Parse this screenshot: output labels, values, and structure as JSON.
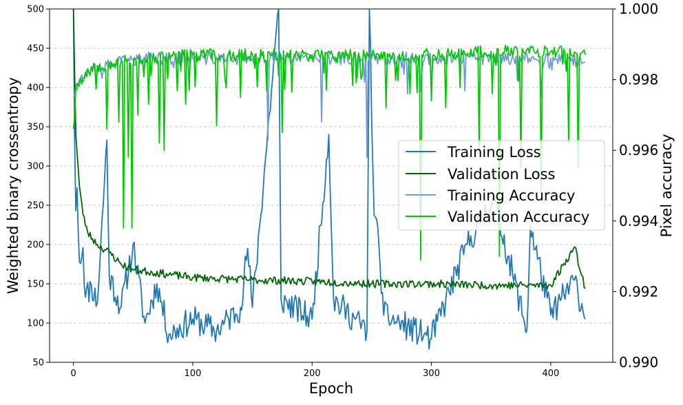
{
  "chart_data": {
    "type": "line",
    "xlabel": "Epoch",
    "ylabel": "Weighted binary crossentropy",
    "y2label": "Pixel accuracy",
    "xlim": [
      -20,
      452
    ],
    "ylim": [
      50,
      500
    ],
    "y2lim": [
      0.99,
      1.0
    ],
    "xticks": [
      "0",
      "100",
      "200",
      "300",
      "400"
    ],
    "yticks": [
      "50",
      "100",
      "150",
      "200",
      "250",
      "300",
      "350",
      "400",
      "450",
      "500"
    ],
    "y2ticks": [
      "0.990",
      "0.992",
      "0.994",
      "0.996",
      "0.998",
      "1.000"
    ],
    "grid": "horizontal dashed",
    "legend_position": "center-right",
    "epochs": 430,
    "series": [
      {
        "name": "Training Loss",
        "axis": "left",
        "color": "#1f77b4",
        "keypoints": [
          [
            0,
            500
          ],
          [
            1,
            330
          ],
          [
            2,
            243
          ],
          [
            3,
            272
          ],
          [
            5,
            178
          ],
          [
            8,
            196
          ],
          [
            10,
            133
          ],
          [
            15,
            148
          ],
          [
            20,
            125
          ],
          [
            28,
            333
          ],
          [
            30,
            160
          ],
          [
            40,
            120
          ],
          [
            50,
            200
          ],
          [
            60,
            100
          ],
          [
            70,
            150
          ],
          [
            80,
            85
          ],
          [
            100,
            105
          ],
          [
            120,
            90
          ],
          [
            140,
            120
          ],
          [
            146,
            195
          ],
          [
            150,
            120
          ],
          [
            172,
            500
          ],
          [
            174,
            130
          ],
          [
            200,
            105
          ],
          [
            214,
            340
          ],
          [
            218,
            130
          ],
          [
            246,
            90
          ],
          [
            248,
            500
          ],
          [
            252,
            237
          ],
          [
            256,
            200
          ],
          [
            260,
            110
          ],
          [
            300,
            80
          ],
          [
            330,
            200
          ],
          [
            352,
            260
          ],
          [
            380,
            90
          ],
          [
            383,
            223
          ],
          [
            400,
            110
          ],
          [
            420,
            155
          ],
          [
            429,
            105
          ]
        ]
      },
      {
        "name": "Validation Loss",
        "axis": "left",
        "color": "#006400",
        "keypoints": [
          [
            0,
            500
          ],
          [
            2,
            340
          ],
          [
            5,
            275
          ],
          [
            8,
            238
          ],
          [
            12,
            215
          ],
          [
            20,
            200
          ],
          [
            30,
            190
          ],
          [
            40,
            175
          ],
          [
            50,
            168
          ],
          [
            80,
            162
          ],
          [
            100,
            158
          ],
          [
            150,
            155
          ],
          [
            200,
            153
          ],
          [
            250,
            150
          ],
          [
            300,
            150
          ],
          [
            350,
            148
          ],
          [
            400,
            148
          ],
          [
            420,
            197
          ],
          [
            429,
            144
          ]
        ]
      },
      {
        "name": "Training Accuracy",
        "axis": "right",
        "color": "#6f9bd1",
        "keypoints": [
          [
            0,
            0.9975
          ],
          [
            2,
            0.9978
          ],
          [
            5,
            0.998
          ],
          [
            10,
            0.99815
          ],
          [
            20,
            0.9983
          ],
          [
            40,
            0.9985
          ],
          [
            60,
            0.9986
          ],
          [
            100,
            0.9986
          ],
          [
            150,
            0.9986
          ],
          [
            200,
            0.9986
          ],
          [
            250,
            0.9986
          ],
          [
            300,
            0.9986
          ],
          [
            350,
            0.9986
          ],
          [
            400,
            0.9986
          ],
          [
            429,
            0.9985
          ]
        ],
        "dips": [
          [
            163,
            0.9963
          ],
          [
            208,
            0.9968
          ],
          [
            246,
            0.9958
          ],
          [
            280,
            0.9976
          ],
          [
            300,
            0.9978
          ],
          [
            392,
            0.9975
          ]
        ]
      },
      {
        "name": "Validation Accuracy",
        "axis": "right",
        "color": "#00c800",
        "keypoints": [
          [
            0,
            0.9966
          ],
          [
            2,
            0.9978
          ],
          [
            10,
            0.9982
          ],
          [
            20,
            0.9984
          ],
          [
            40,
            0.9985
          ],
          [
            60,
            0.9986
          ],
          [
            100,
            0.9987
          ],
          [
            150,
            0.9987
          ],
          [
            200,
            0.9987
          ],
          [
            250,
            0.9987
          ],
          [
            300,
            0.9987
          ],
          [
            350,
            0.9988
          ],
          [
            400,
            0.9988
          ],
          [
            429,
            0.9987
          ]
        ],
        "dips": [
          [
            28,
            0.9966
          ],
          [
            38,
            0.9968
          ],
          [
            42,
            0.9938
          ],
          [
            46,
            0.9958
          ],
          [
            49,
            0.9938
          ],
          [
            54,
            0.997
          ],
          [
            72,
            0.9962
          ],
          [
            76,
            0.996
          ],
          [
            94,
            0.9973
          ],
          [
            102,
            0.9978
          ],
          [
            120,
            0.9967
          ],
          [
            140,
            0.9975
          ],
          [
            175,
            0.9965
          ],
          [
            212,
            0.9977
          ],
          [
            262,
            0.9972
          ],
          [
            282,
            0.9976
          ],
          [
            291,
            0.9929
          ],
          [
            300,
            0.9974
          ],
          [
            312,
            0.9972
          ],
          [
            340,
            0.996
          ],
          [
            357,
            0.993
          ],
          [
            375,
            0.9955
          ],
          [
            392,
            0.9948
          ],
          [
            415,
            0.9962
          ],
          [
            423,
            0.9955
          ]
        ]
      }
    ]
  }
}
